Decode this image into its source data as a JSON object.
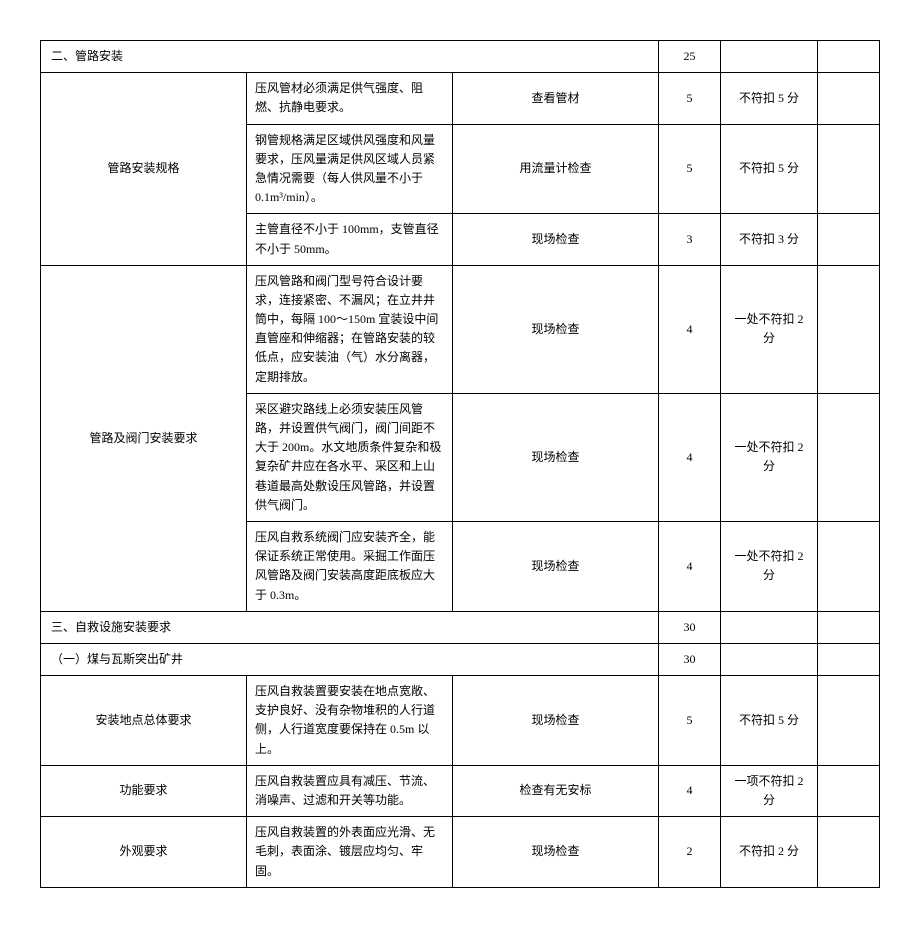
{
  "sections": {
    "s2": {
      "title": "二、管路安装",
      "score": "25",
      "group1": {
        "label": "管路安装规格",
        "rows": [
          {
            "desc": "压风管材必须满足供气强度、阻燃、抗静电要求。",
            "method": "查看管材",
            "pts": "5",
            "deduct": "不符扣 5 分"
          },
          {
            "desc": "钢管规格满足区域供风强度和风量要求，压风量满足供风区域人员紧急情况需要（每人供风量不小于 0.1m³/min）。",
            "method": "用流量计检查",
            "pts": "5",
            "deduct": "不符扣 5 分"
          },
          {
            "desc": "主管直径不小于 100mm，支管直径不小于 50mm。",
            "method": "现场检查",
            "pts": "3",
            "deduct": "不符扣 3 分"
          }
        ]
      },
      "group2": {
        "label": "管路及阀门安装要求",
        "rows": [
          {
            "desc": "压风管路和阀门型号符合设计要求，连接紧密、不漏风；在立井井筒中，每隔 100～150m 宜装设中间直管座和伸缩器；在管路安装的较低点，应安装油（气）水分离器，定期排放。",
            "method": "现场检查",
            "pts": "4",
            "deduct": "一处不符扣 2 分"
          },
          {
            "desc": "采区避灾路线上必须安装压风管路，并设置供气阀门，阀门间距不大于 200m。水文地质条件复杂和极复杂矿井应在各水平、采区和上山巷道最高处敷设压风管路，并设置供气阀门。",
            "method": "现场检查",
            "pts": "4",
            "deduct": "一处不符扣 2 分"
          },
          {
            "desc": "压风自救系统阀门应安装齐全，能保证系统正常使用。采掘工作面压风管路及阀门安装高度距底板应大于 0.3m。",
            "method": "现场检查",
            "pts": "4",
            "deduct": "一处不符扣 2 分"
          }
        ]
      }
    },
    "s3": {
      "title": "三、自救设施安装要求",
      "score": "30",
      "sub1": {
        "title": "（一）煤与瓦斯突出矿井",
        "score": "30",
        "rows": [
          {
            "label": "安装地点总体要求",
            "desc": "压风自救装置要安装在地点宽敞、支护良好、没有杂物堆积的人行道侧，人行道宽度要保持在 0.5m 以上。",
            "method": "现场检查",
            "pts": "5",
            "deduct": "不符扣 5 分"
          },
          {
            "label": "功能要求",
            "desc": "压风自救装置应具有减压、节流、消噪声、过滤和开关等功能。",
            "method": "检查有无安标",
            "pts": "4",
            "deduct": "一项不符扣 2 分"
          },
          {
            "label": "外观要求",
            "desc": "压风自救装置的外表面应光滑、无毛刺，表面涂、镀层应均匀、牢固。",
            "method": "现场检查",
            "pts": "2",
            "deduct": "不符扣 2 分"
          }
        ]
      }
    }
  }
}
